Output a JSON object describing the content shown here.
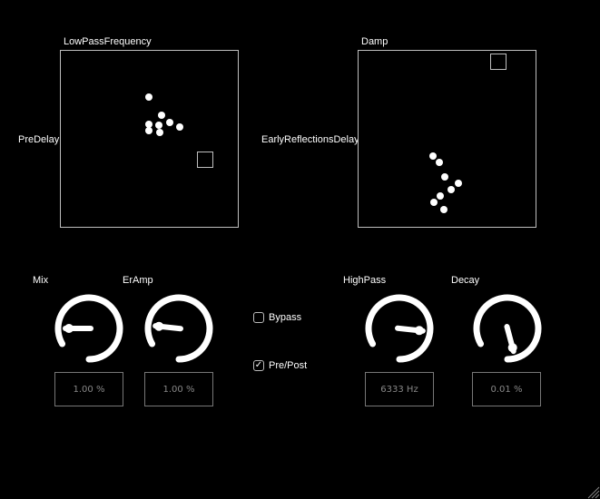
{
  "pads": {
    "left": {
      "x_label": "LowPassFrequency",
      "y_label": "PreDelay"
    },
    "right": {
      "x_label": "Damp",
      "y_label": "EarlyReflectionsDelay"
    }
  },
  "knobs": [
    {
      "id": "mix",
      "label": "Mix",
      "value": "1.00 %",
      "level": 0.1
    },
    {
      "id": "eramp",
      "label": "ErAmp",
      "value": "1.00 %",
      "level": 0.12
    },
    {
      "id": "highpass",
      "label": "HighPass",
      "value": "6333 Hz",
      "level": 0.72
    },
    {
      "id": "decay",
      "label": "Decay",
      "value": "0.01 %",
      "level": 0.95
    }
  ],
  "toggles": {
    "bypass": {
      "label": "Bypass",
      "checked": false
    },
    "prepost": {
      "label": "Pre/Post",
      "checked": true,
      "mark": "✓"
    }
  }
}
